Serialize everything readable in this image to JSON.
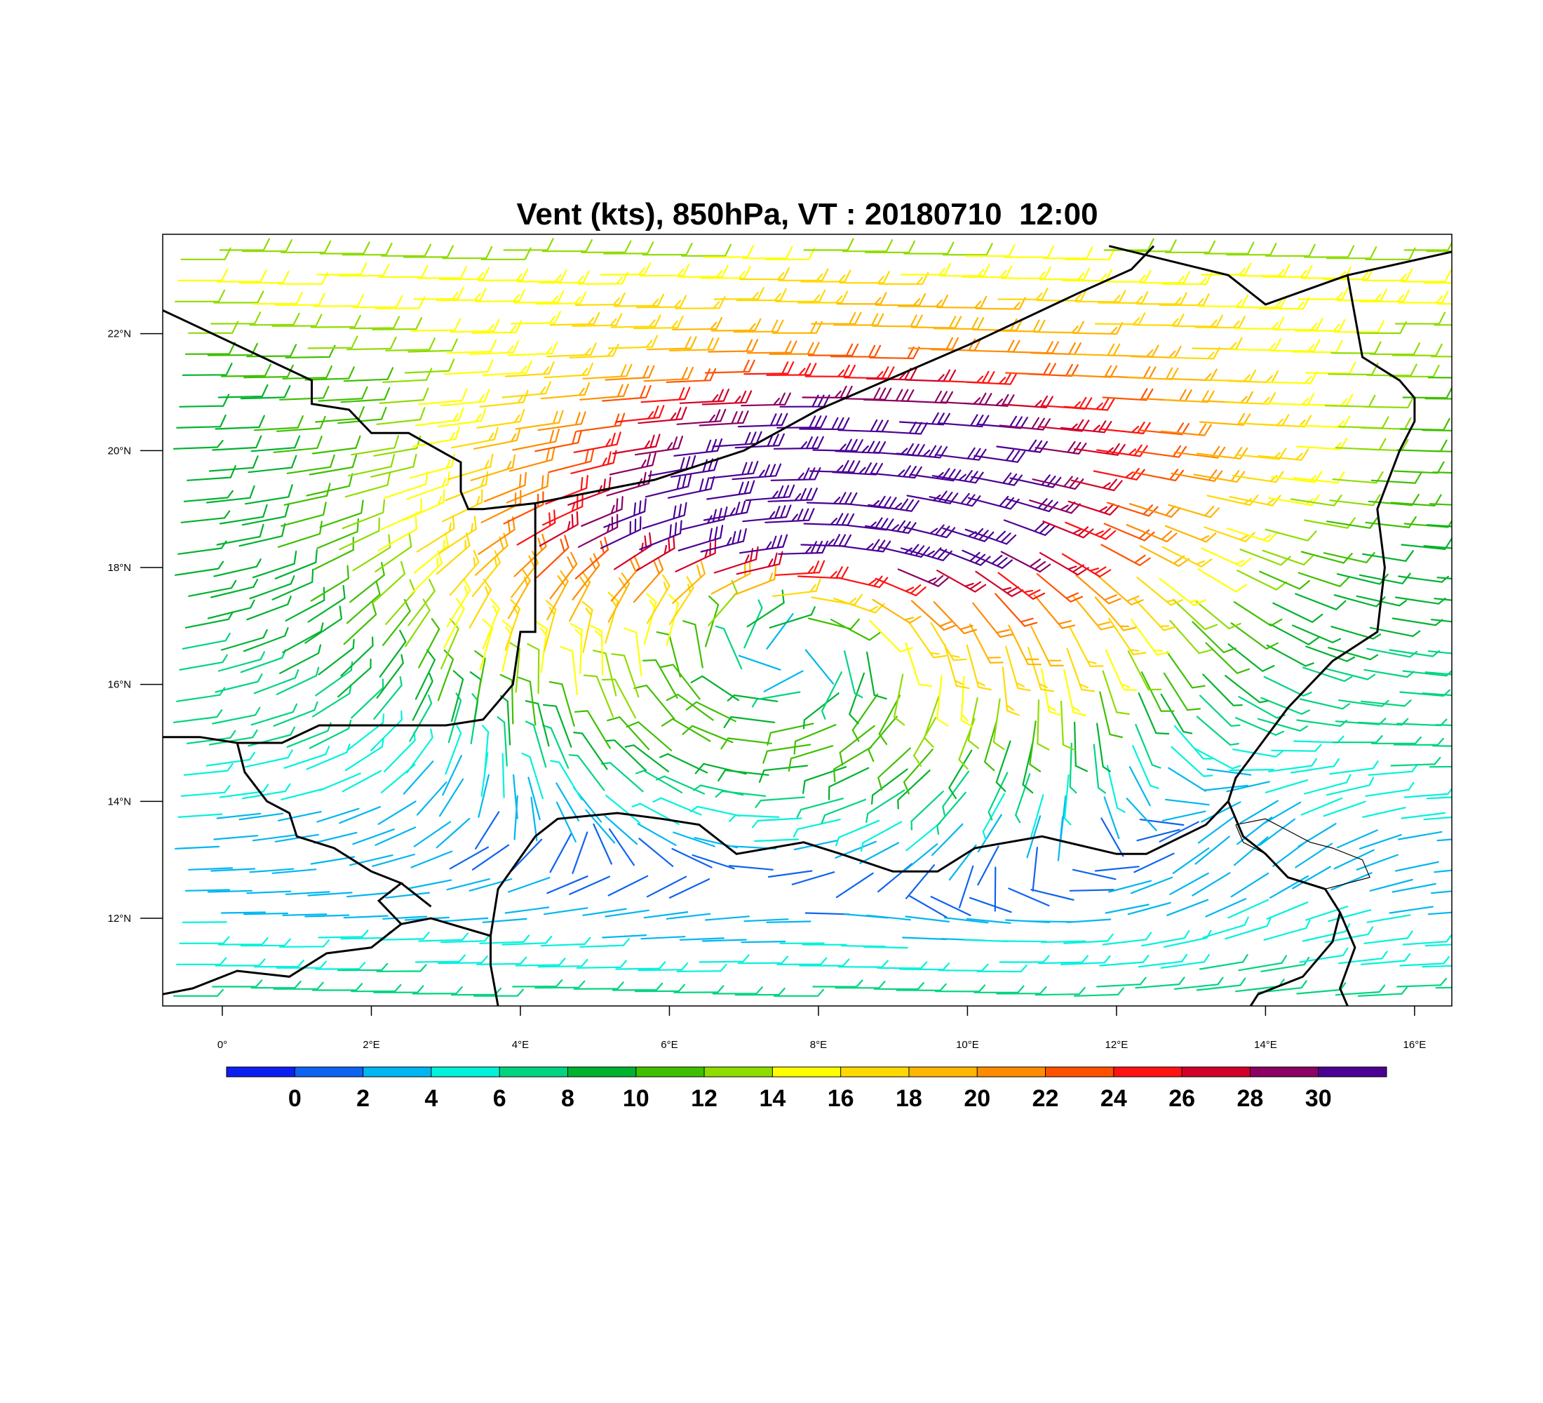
{
  "title": "Vent (kts), 850hPa, VT : 20180710  12:00",
  "map": {
    "lon_range": [
      -0.8,
      16.5
    ],
    "lat_range": [
      10.5,
      23.7
    ],
    "lon_ticks": [
      {
        "value": 0,
        "label": "0°"
      },
      {
        "value": 2,
        "label": "2°E"
      },
      {
        "value": 4,
        "label": "4°E"
      },
      {
        "value": 6,
        "label": "6°E"
      },
      {
        "value": 8,
        "label": "8°E"
      },
      {
        "value": 10,
        "label": "10°E"
      },
      {
        "value": 12,
        "label": "12°E"
      },
      {
        "value": 14,
        "label": "14°E"
      },
      {
        "value": 16,
        "label": "16°E"
      }
    ],
    "lat_ticks": [
      {
        "value": 12,
        "label": "12°N"
      },
      {
        "value": 14,
        "label": "14°N"
      },
      {
        "value": 16,
        "label": "16°N"
      },
      {
        "value": 18,
        "label": "18°N"
      },
      {
        "value": 20,
        "label": "20°N"
      },
      {
        "value": 22,
        "label": "22°N"
      }
    ],
    "borders": [
      [
        [
          -0.8,
          22.4
        ],
        [
          1.2,
          21.2
        ],
        [
          1.2,
          20.8
        ],
        [
          1.7,
          20.7
        ],
        [
          2.0,
          20.3
        ],
        [
          2.5,
          20.3
        ],
        [
          3.2,
          19.8
        ],
        [
          3.2,
          19.3
        ],
        [
          3.3,
          19.0
        ],
        [
          3.5,
          19.0
        ],
        [
          4.2,
          19.1
        ],
        [
          5.8,
          19.5
        ],
        [
          7.0,
          20.0
        ],
        [
          8.0,
          20.7
        ],
        [
          10.0,
          21.8
        ],
        [
          11.5,
          22.7
        ],
        [
          12.2,
          23.1
        ],
        [
          12.5,
          23.5
        ]
      ],
      [
        [
          4.2,
          19.1
        ],
        [
          4.2,
          16.9
        ],
        [
          4.0,
          16.9
        ],
        [
          3.9,
          16.0
        ],
        [
          3.5,
          15.4
        ],
        [
          3.0,
          15.3
        ],
        [
          2.0,
          15.3
        ],
        [
          1.3,
          15.3
        ],
        [
          0.8,
          15.0
        ],
        [
          0.2,
          15.0
        ],
        [
          -0.3,
          15.1
        ],
        [
          -0.8,
          15.1
        ]
      ],
      [
        [
          0.2,
          15.0
        ],
        [
          0.3,
          14.5
        ],
        [
          0.6,
          14.0
        ],
        [
          0.9,
          13.8
        ],
        [
          1.0,
          13.4
        ],
        [
          1.5,
          13.2
        ],
        [
          2.0,
          12.8
        ],
        [
          2.4,
          12.6
        ],
        [
          2.1,
          12.3
        ],
        [
          2.4,
          11.9
        ],
        [
          2.8,
          12.0
        ],
        [
          3.6,
          11.7
        ],
        [
          3.6,
          11.2
        ],
        [
          3.7,
          10.5
        ]
      ],
      [
        [
          2.4,
          12.6
        ],
        [
          2.8,
          12.2
        ]
      ],
      [
        [
          3.6,
          11.7
        ],
        [
          3.7,
          12.5
        ],
        [
          4.2,
          13.4
        ],
        [
          4.5,
          13.7
        ],
        [
          5.3,
          13.8
        ],
        [
          5.9,
          13.7
        ],
        [
          6.4,
          13.6
        ],
        [
          6.9,
          13.1
        ],
        [
          7.8,
          13.3
        ],
        [
          8.3,
          13.1
        ],
        [
          9.0,
          12.8
        ],
        [
          9.6,
          12.8
        ],
        [
          10.1,
          13.2
        ],
        [
          11.0,
          13.4
        ],
        [
          12.0,
          13.1
        ],
        [
          12.4,
          13.1
        ],
        [
          13.2,
          13.6
        ],
        [
          13.5,
          14.0
        ]
      ],
      [
        [
          13.5,
          14.0
        ],
        [
          13.6,
          14.4
        ],
        [
          14.3,
          15.6
        ],
        [
          14.9,
          16.4
        ],
        [
          15.5,
          16.9
        ],
        [
          15.6,
          18.0
        ],
        [
          15.5,
          19.0
        ],
        [
          15.8,
          20.0
        ],
        [
          16.0,
          20.5
        ],
        [
          16.0,
          20.9
        ],
        [
          15.8,
          21.2
        ],
        [
          15.3,
          21.6
        ],
        [
          15.1,
          23.0
        ],
        [
          14.0,
          22.5
        ],
        [
          13.5,
          23.0
        ],
        [
          11.9,
          23.5
        ]
      ],
      [
        [
          15.1,
          23.0
        ],
        [
          16.5,
          23.4
        ]
      ],
      [
        [
          13.5,
          14.0
        ],
        [
          13.7,
          13.4
        ],
        [
          14.0,
          13.1
        ],
        [
          14.3,
          12.7
        ],
        [
          14.8,
          12.5
        ],
        [
          15.0,
          12.1
        ],
        [
          14.9,
          11.6
        ],
        [
          14.5,
          11.0
        ],
        [
          13.9,
          10.7
        ],
        [
          13.8,
          10.5
        ]
      ],
      [
        [
          15.0,
          12.1
        ],
        [
          15.2,
          11.5
        ],
        [
          15.0,
          10.8
        ],
        [
          15.1,
          10.5
        ]
      ],
      [
        [
          -0.8,
          10.7
        ],
        [
          -0.4,
          10.8
        ],
        [
          0.2,
          11.1
        ],
        [
          0.9,
          11.0
        ],
        [
          1.4,
          11.4
        ],
        [
          2.0,
          11.5
        ],
        [
          2.4,
          11.9
        ]
      ]
    ],
    "thin_borders": [
      [
        [
          13.6,
          13.6
        ],
        [
          14.0,
          13.7
        ],
        [
          14.3,
          13.5
        ],
        [
          14.6,
          13.3
        ],
        [
          14.9,
          13.2
        ],
        [
          15.3,
          13.0
        ],
        [
          15.4,
          12.7
        ],
        [
          15.1,
          12.6
        ],
        [
          14.8,
          12.5
        ]
      ],
      [
        [
          14.0,
          13.1
        ],
        [
          13.7,
          13.3
        ],
        [
          13.6,
          13.6
        ]
      ]
    ]
  },
  "colorbar": {
    "colors": [
      "#0d1ef2",
      "#0e63f0",
      "#00b6f0",
      "#00f2db",
      "#00d480",
      "#00b22e",
      "#3fbf00",
      "#8fdc00",
      "#ffff00",
      "#ffd900",
      "#ffb600",
      "#ff8c00",
      "#ff5200",
      "#ff1212",
      "#d20028",
      "#8b0062",
      "#4b0094"
    ],
    "labels": [
      "0",
      "2",
      "4",
      "6",
      "8",
      "10",
      "12",
      "14",
      "16",
      "18",
      "20",
      "22",
      "24",
      "26",
      "28",
      "30"
    ]
  },
  "wind_field": {
    "description_units": "kts",
    "vortex_center_lon": 7.6,
    "vortex_center_lat": 17.0,
    "jet_core_lon": 9.0,
    "jet_core_lat": 20.3,
    "jet_core_speed": 27
  }
}
